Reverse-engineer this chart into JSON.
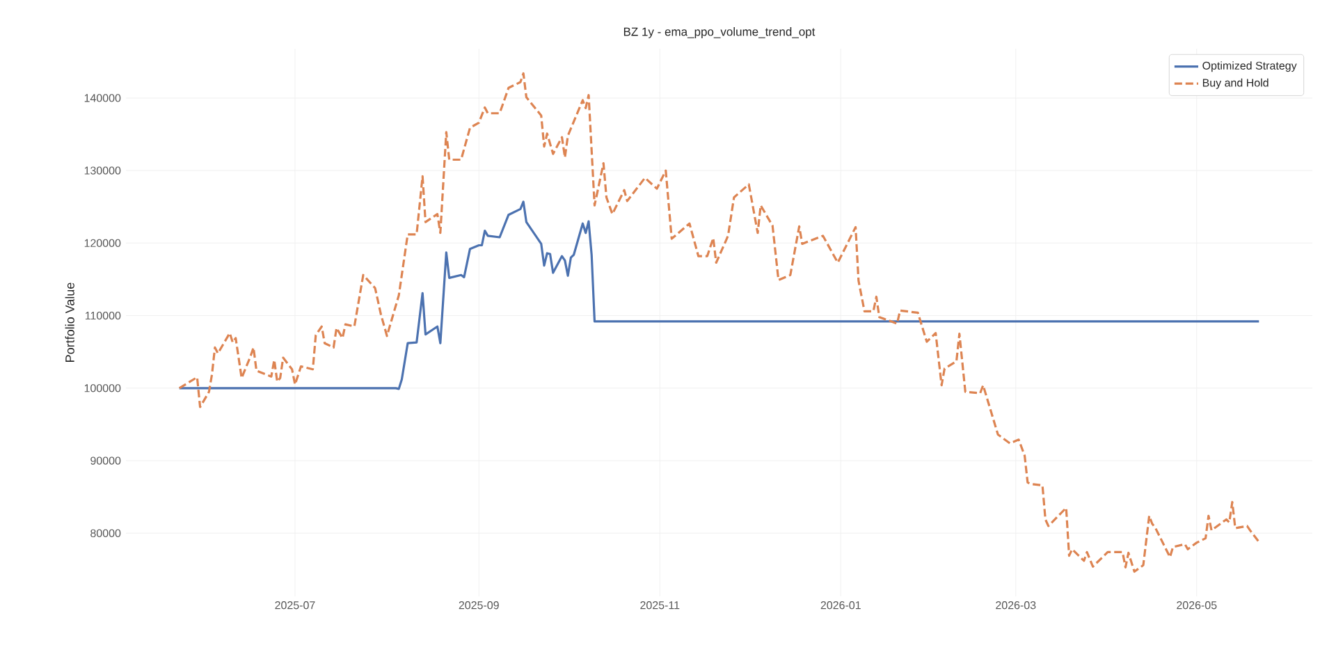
{
  "chart_data": {
    "type": "line",
    "title": "BZ 1y - ema_ppo_volume_trend_opt",
    "ylabel": "Portfolio Value",
    "xlim": [
      "2025-05-05",
      "2026-06-09"
    ],
    "ylim": [
      71300,
      146800
    ],
    "xticks": [
      {
        "value": "2025-07-01",
        "label": "2025-07"
      },
      {
        "value": "2025-09-01",
        "label": "2025-09"
      },
      {
        "value": "2025-11-01",
        "label": "2025-11"
      },
      {
        "value": "2026-01-01",
        "label": "2026-01"
      },
      {
        "value": "2026-03-01",
        "label": "2026-03"
      },
      {
        "value": "2026-05-01",
        "label": "2026-05"
      }
    ],
    "yticks": [
      80000,
      90000,
      100000,
      110000,
      120000,
      130000,
      140000
    ],
    "grid": true,
    "legend": "top right",
    "series": [
      {
        "name": "Optimized Strategy",
        "color": "#4c72b0",
        "line_style": "solid",
        "x": [
          "2025-05-23",
          "2025-08-04",
          "2025-08-05",
          "2025-08-06",
          "2025-08-08",
          "2025-08-11",
          "2025-08-13",
          "2025-08-14",
          "2025-08-18",
          "2025-08-19",
          "2025-08-21",
          "2025-08-22",
          "2025-08-26",
          "2025-08-27",
          "2025-08-29",
          "2025-09-01",
          "2025-09-02",
          "2025-09-03",
          "2025-09-04",
          "2025-09-08",
          "2025-09-11",
          "2025-09-15",
          "2025-09-16",
          "2025-09-17",
          "2025-09-22",
          "2025-09-23",
          "2025-09-24",
          "2025-09-25",
          "2025-09-26",
          "2025-09-29",
          "2025-09-30",
          "2025-10-01",
          "2025-10-02",
          "2025-10-03",
          "2025-10-06",
          "2025-10-07",
          "2025-10-08",
          "2025-10-09",
          "2025-10-10",
          "2026-05-22"
        ],
        "values": [
          100000,
          100000,
          99900,
          101200,
          106200,
          106300,
          113100,
          107400,
          108500,
          106200,
          118700,
          115200,
          115600,
          115300,
          119200,
          119700,
          119700,
          121700,
          121000,
          120800,
          123900,
          124700,
          125700,
          122900,
          119900,
          116900,
          118600,
          118500,
          115900,
          118200,
          117600,
          115500,
          118000,
          118400,
          122700,
          121400,
          123000,
          118400,
          109200,
          109200
        ]
      },
      {
        "name": "Buy and Hold",
        "color": "#dd8452",
        "line_style": "dashed",
        "x": [
          "2025-05-23",
          "2025-05-29",
          "2025-05-30",
          "2025-06-02",
          "2025-06-03",
          "2025-06-04",
          "2025-06-05",
          "2025-06-09",
          "2025-06-10",
          "2025-06-11",
          "2025-06-13",
          "2025-06-16",
          "2025-06-17",
          "2025-06-18",
          "2025-06-23",
          "2025-06-24",
          "2025-06-25",
          "2025-06-26",
          "2025-06-27",
          "2025-06-30",
          "2025-07-01",
          "2025-07-03",
          "2025-07-07",
          "2025-07-08",
          "2025-07-10",
          "2025-07-11",
          "2025-07-14",
          "2025-07-15",
          "2025-07-17",
          "2025-07-18",
          "2025-07-21",
          "2025-07-24",
          "2025-07-28",
          "2025-07-30",
          "2025-08-01",
          "2025-08-05",
          "2025-08-08",
          "2025-08-11",
          "2025-08-13",
          "2025-08-14",
          "2025-08-18",
          "2025-08-19",
          "2025-08-21",
          "2025-08-22",
          "2025-08-26",
          "2025-08-29",
          "2025-09-01",
          "2025-09-03",
          "2025-09-04",
          "2025-09-08",
          "2025-09-11",
          "2025-09-15",
          "2025-09-16",
          "2025-09-17",
          "2025-09-22",
          "2025-09-23",
          "2025-09-24",
          "2025-09-26",
          "2025-09-29",
          "2025-09-30",
          "2025-10-01",
          "2025-10-06",
          "2025-10-07",
          "2025-10-08",
          "2025-10-10",
          "2025-10-13",
          "2025-10-14",
          "2025-10-16",
          "2025-10-20",
          "2025-10-21",
          "2025-10-27",
          "2025-10-31",
          "2025-11-03",
          "2025-11-05",
          "2025-11-11",
          "2025-11-14",
          "2025-11-17",
          "2025-11-19",
          "2025-11-20",
          "2025-11-24",
          "2025-11-26",
          "2025-12-01",
          "2025-12-04",
          "2025-12-05",
          "2025-12-09",
          "2025-12-11",
          "2025-12-15",
          "2025-12-18",
          "2025-12-19",
          "2025-12-26",
          "2025-12-31",
          "2026-01-06",
          "2026-01-07",
          "2026-01-09",
          "2026-01-12",
          "2026-01-13",
          "2026-01-14",
          "2026-01-20",
          "2026-01-21",
          "2026-01-27",
          "2026-01-30",
          "2026-02-02",
          "2026-02-04",
          "2026-02-05",
          "2026-02-09",
          "2026-02-10",
          "2026-02-12",
          "2026-02-17",
          "2026-02-18",
          "2026-02-23",
          "2026-02-27",
          "2026-03-02",
          "2026-03-04",
          "2026-03-05",
          "2026-03-06",
          "2026-03-10",
          "2026-03-11",
          "2026-03-12",
          "2026-03-18",
          "2026-03-19",
          "2026-03-20",
          "2026-03-24",
          "2026-03-25",
          "2026-03-27",
          "2026-04-01",
          "2026-04-06",
          "2026-04-07",
          "2026-04-08",
          "2026-04-10",
          "2026-04-13",
          "2026-04-15",
          "2026-04-16",
          "2026-04-17",
          "2026-04-22",
          "2026-04-23",
          "2026-04-27",
          "2026-04-28",
          "2026-05-01",
          "2026-05-04",
          "2026-05-05",
          "2026-05-06",
          "2026-05-11",
          "2026-05-12",
          "2026-05-13",
          "2026-05-14",
          "2026-05-18",
          "2026-05-19",
          "2026-05-22"
        ],
        "values": [
          100000,
          101500,
          97400,
          99500,
          101900,
          105600,
          104800,
          107600,
          106300,
          106900,
          101400,
          104400,
          105600,
          102400,
          101600,
          103900,
          100900,
          101400,
          104200,
          102600,
          100500,
          103000,
          102600,
          107300,
          108500,
          106200,
          105600,
          108300,
          106900,
          108800,
          108500,
          115600,
          113800,
          110100,
          107200,
          112800,
          121200,
          121200,
          129200,
          122900,
          124000,
          121400,
          135300,
          131500,
          131500,
          135900,
          136600,
          138700,
          137900,
          137900,
          141400,
          142200,
          143400,
          140100,
          137600,
          133300,
          135100,
          132300,
          134600,
          131800,
          134800,
          139700,
          138600,
          140400,
          125200,
          131000,
          126300,
          124000,
          127300,
          125800,
          129000,
          127500,
          130000,
          120600,
          122700,
          118200,
          118200,
          120700,
          117300,
          121000,
          126300,
          128100,
          121400,
          125200,
          122400,
          114900,
          115600,
          122300,
          119900,
          121000,
          117300,
          122200,
          114800,
          110600,
          110600,
          112600,
          109800,
          108900,
          110700,
          110400,
          106400,
          107600,
          100400,
          102700,
          103700,
          107500,
          99500,
          99300,
          100400,
          93600,
          92400,
          92900,
          90700,
          87000,
          86800,
          86600,
          81900,
          81000,
          83500,
          76900,
          77800,
          76200,
          77400,
          75400,
          77400,
          77400,
          75300,
          77300,
          74700,
          75600,
          82400,
          81300,
          80800,
          76700,
          78100,
          78500,
          77800,
          78700,
          79300,
          82400,
          80400,
          81900,
          81500,
          84300,
          80700,
          81000,
          80400,
          78800
        ]
      }
    ]
  }
}
